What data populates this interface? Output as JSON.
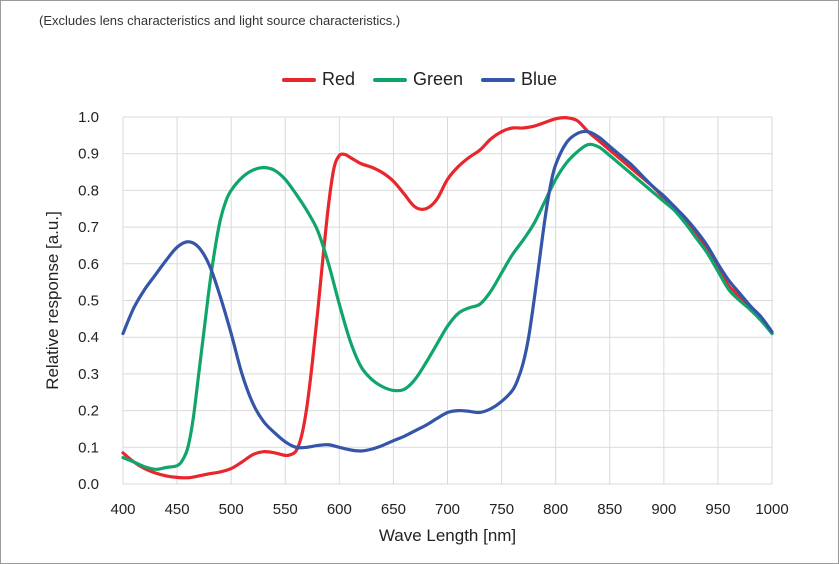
{
  "note": "(Excludes lens characteristics and light source characteristics.)",
  "chart_data": {
    "type": "line",
    "title": "",
    "xlabel": "Wave Length [nm]",
    "ylabel": "Relative response [a.u.]",
    "xlim": [
      400,
      1000
    ],
    "ylim": [
      0.0,
      1.0
    ],
    "xticks": [
      400,
      450,
      500,
      550,
      600,
      650,
      700,
      750,
      800,
      850,
      900,
      950,
      1000
    ],
    "yticks": [
      0.0,
      0.1,
      0.2,
      0.3,
      0.4,
      0.5,
      0.6,
      0.7,
      0.8,
      0.9,
      1.0
    ],
    "xtick_labels": [
      "400",
      "450",
      "500",
      "550",
      "600",
      "650",
      "700",
      "750",
      "800",
      "850",
      "900",
      "950",
      "1000"
    ],
    "ytick_labels": [
      "0.0",
      "0.1",
      "0.2",
      "0.3",
      "0.4",
      "0.5",
      "0.6",
      "0.7",
      "0.8",
      "0.9",
      "1.0"
    ],
    "grid": true,
    "legend_position": "top-center",
    "series": [
      {
        "name": "Red",
        "color": "#e8262b",
        "x": [
          400,
          410,
          420,
          430,
          440,
          450,
          460,
          470,
          480,
          490,
          500,
          510,
          520,
          530,
          540,
          550,
          555,
          560,
          565,
          570,
          575,
          580,
          585,
          590,
          595,
          600,
          605,
          610,
          620,
          630,
          640,
          650,
          660,
          670,
          680,
          690,
          700,
          710,
          720,
          730,
          740,
          750,
          760,
          770,
          780,
          790,
          800,
          810,
          820,
          830,
          840,
          850,
          860,
          870,
          880,
          890,
          900,
          910,
          920,
          930,
          940,
          950,
          960,
          970,
          980,
          990,
          1000
        ],
        "values": [
          0.085,
          0.06,
          0.042,
          0.03,
          0.022,
          0.018,
          0.017,
          0.022,
          0.028,
          0.033,
          0.042,
          0.06,
          0.08,
          0.088,
          0.085,
          0.078,
          0.08,
          0.09,
          0.13,
          0.21,
          0.33,
          0.47,
          0.62,
          0.76,
          0.86,
          0.895,
          0.898,
          0.89,
          0.873,
          0.863,
          0.848,
          0.825,
          0.79,
          0.755,
          0.75,
          0.775,
          0.83,
          0.865,
          0.89,
          0.91,
          0.94,
          0.96,
          0.97,
          0.97,
          0.975,
          0.985,
          0.995,
          0.998,
          0.99,
          0.96,
          0.935,
          0.91,
          0.885,
          0.86,
          0.835,
          0.81,
          0.78,
          0.755,
          0.72,
          0.68,
          0.64,
          0.59,
          0.54,
          0.51,
          0.475,
          0.45,
          0.41
        ]
      },
      {
        "name": "Green",
        "color": "#10a66b",
        "x": [
          400,
          410,
          420,
          430,
          440,
          450,
          455,
          460,
          465,
          470,
          475,
          480,
          485,
          490,
          495,
          500,
          510,
          520,
          530,
          540,
          550,
          560,
          570,
          580,
          590,
          600,
          610,
          620,
          630,
          640,
          650,
          660,
          670,
          680,
          690,
          700,
          710,
          720,
          730,
          740,
          750,
          760,
          770,
          780,
          790,
          800,
          810,
          820,
          830,
          840,
          850,
          860,
          870,
          880,
          890,
          900,
          910,
          920,
          930,
          940,
          950,
          960,
          970,
          980,
          990,
          1000
        ],
        "values": [
          0.072,
          0.06,
          0.047,
          0.04,
          0.045,
          0.05,
          0.065,
          0.1,
          0.18,
          0.3,
          0.42,
          0.54,
          0.64,
          0.72,
          0.77,
          0.8,
          0.835,
          0.855,
          0.862,
          0.855,
          0.83,
          0.79,
          0.745,
          0.69,
          0.6,
          0.49,
          0.39,
          0.32,
          0.285,
          0.265,
          0.255,
          0.258,
          0.285,
          0.33,
          0.38,
          0.43,
          0.465,
          0.48,
          0.49,
          0.525,
          0.575,
          0.625,
          0.665,
          0.71,
          0.77,
          0.83,
          0.875,
          0.905,
          0.925,
          0.918,
          0.895,
          0.87,
          0.845,
          0.82,
          0.795,
          0.77,
          0.745,
          0.71,
          0.67,
          0.63,
          0.58,
          0.53,
          0.5,
          0.475,
          0.445,
          0.41
        ]
      },
      {
        "name": "Blue",
        "color": "#3455a8",
        "x": [
          400,
          410,
          420,
          430,
          440,
          450,
          460,
          470,
          480,
          490,
          500,
          510,
          520,
          530,
          540,
          550,
          560,
          570,
          580,
          590,
          600,
          610,
          620,
          630,
          640,
          650,
          660,
          670,
          680,
          690,
          700,
          710,
          720,
          730,
          740,
          750,
          760,
          765,
          770,
          775,
          780,
          785,
          790,
          795,
          800,
          810,
          820,
          830,
          840,
          850,
          860,
          870,
          880,
          890,
          900,
          910,
          920,
          930,
          940,
          950,
          960,
          970,
          980,
          990,
          1000
        ],
        "values": [
          0.41,
          0.48,
          0.53,
          0.57,
          0.61,
          0.645,
          0.66,
          0.645,
          0.595,
          0.51,
          0.41,
          0.3,
          0.22,
          0.17,
          0.14,
          0.115,
          0.1,
          0.1,
          0.105,
          0.107,
          0.1,
          0.093,
          0.09,
          0.095,
          0.105,
          0.118,
          0.13,
          0.145,
          0.16,
          0.178,
          0.195,
          0.2,
          0.198,
          0.195,
          0.205,
          0.225,
          0.255,
          0.285,
          0.33,
          0.4,
          0.5,
          0.61,
          0.72,
          0.81,
          0.87,
          0.93,
          0.955,
          0.96,
          0.945,
          0.92,
          0.895,
          0.87,
          0.84,
          0.81,
          0.785,
          0.755,
          0.725,
          0.69,
          0.65,
          0.6,
          0.555,
          0.52,
          0.485,
          0.455,
          0.415
        ]
      }
    ]
  }
}
